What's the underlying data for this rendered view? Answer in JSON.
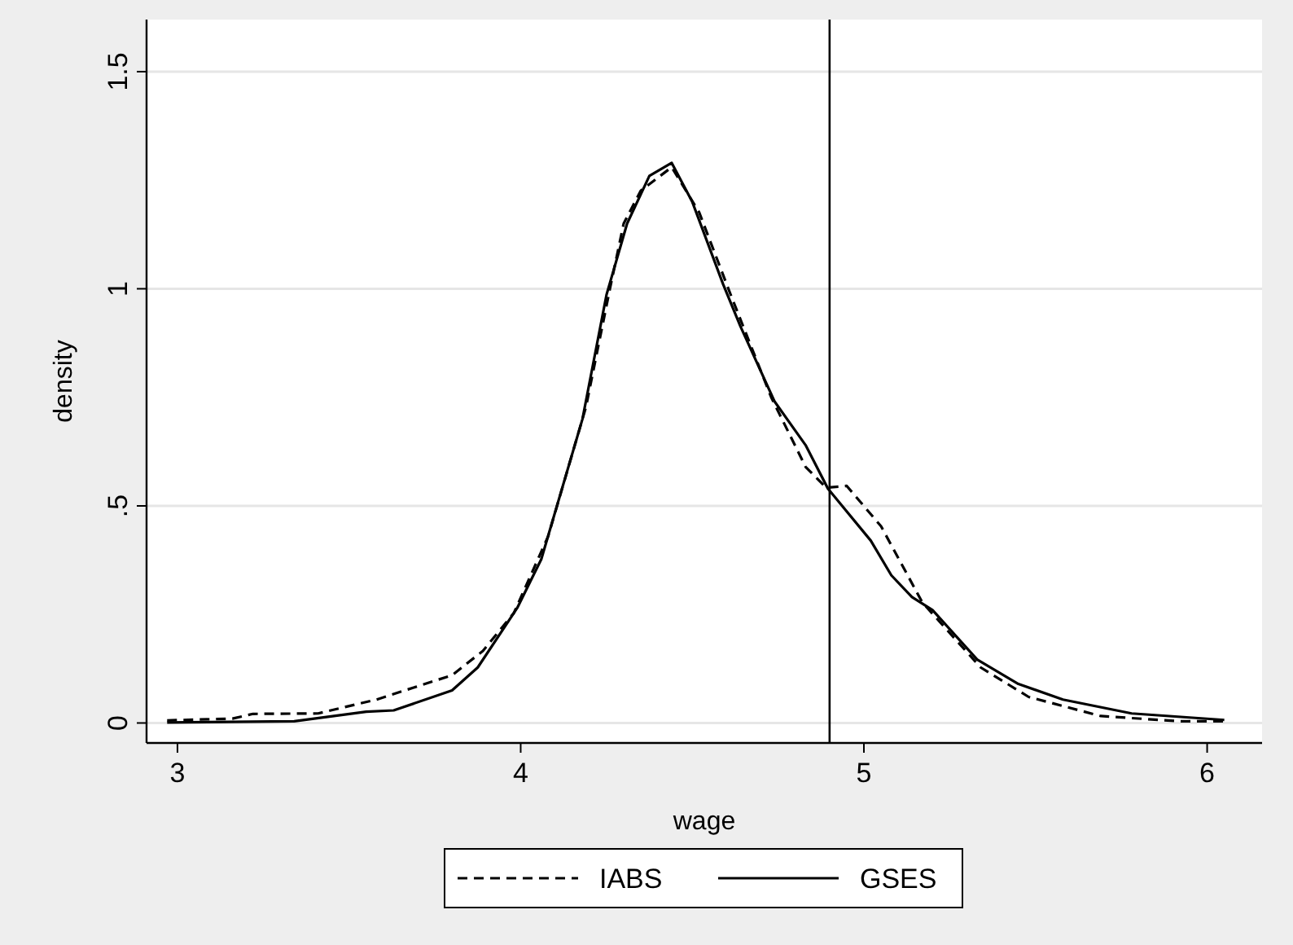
{
  "chart_data": {
    "type": "line",
    "xlabel": "wage",
    "ylabel": "density",
    "xlim": [
      2.91,
      6.16
    ],
    "ylim": [
      -0.046,
      1.62
    ],
    "xticks": [
      3,
      4,
      5,
      6
    ],
    "yticks": [
      0,
      {
        "value": 0.5,
        "label": ".5"
      },
      1,
      1.5
    ],
    "grid": "y",
    "legend": "bottom",
    "marker": "none",
    "ref_lines": [
      {
        "axis": "x",
        "value": 4.9,
        "color": "#000000"
      }
    ],
    "series": [
      {
        "name": "IABS",
        "color": "#000000",
        "line_style": "dashed",
        "x": [
          2.97,
          3.16,
          3.22,
          3.41,
          3.58,
          3.8,
          3.89,
          3.98,
          4.08,
          4.19,
          4.26,
          4.3,
          4.35,
          4.44,
          4.52,
          4.61,
          4.73,
          4.83,
          4.89,
          4.95,
          5.05,
          5.17,
          5.34,
          5.48,
          5.69,
          5.92,
          6.05
        ],
        "values": [
          0.006,
          0.01,
          0.021,
          0.022,
          0.054,
          0.11,
          0.166,
          0.253,
          0.43,
          0.727,
          1.0,
          1.15,
          1.226,
          1.28,
          1.176,
          0.99,
          0.75,
          0.59,
          0.542,
          0.546,
          0.453,
          0.278,
          0.128,
          0.06,
          0.016,
          0.004,
          0.004
        ]
      },
      {
        "name": "GSES",
        "color": "#000000",
        "line_style": "solid",
        "x": [
          2.97,
          3.34,
          3.55,
          3.63,
          3.8,
          3.875,
          3.99,
          4.06,
          4.18,
          4.25,
          4.31,
          4.375,
          4.44,
          4.5,
          4.59,
          4.64,
          4.74,
          4.83,
          4.895,
          5.02,
          5.08,
          5.14,
          5.2,
          5.33,
          5.45,
          5.58,
          5.78,
          6.05
        ],
        "values": [
          0.001,
          0.004,
          0.026,
          0.029,
          0.075,
          0.128,
          0.265,
          0.377,
          0.7,
          0.986,
          1.15,
          1.26,
          1.29,
          1.2,
          1.01,
          0.914,
          0.74,
          0.64,
          0.54,
          0.42,
          0.34,
          0.29,
          0.26,
          0.146,
          0.09,
          0.054,
          0.022,
          0.007
        ]
      }
    ]
  }
}
